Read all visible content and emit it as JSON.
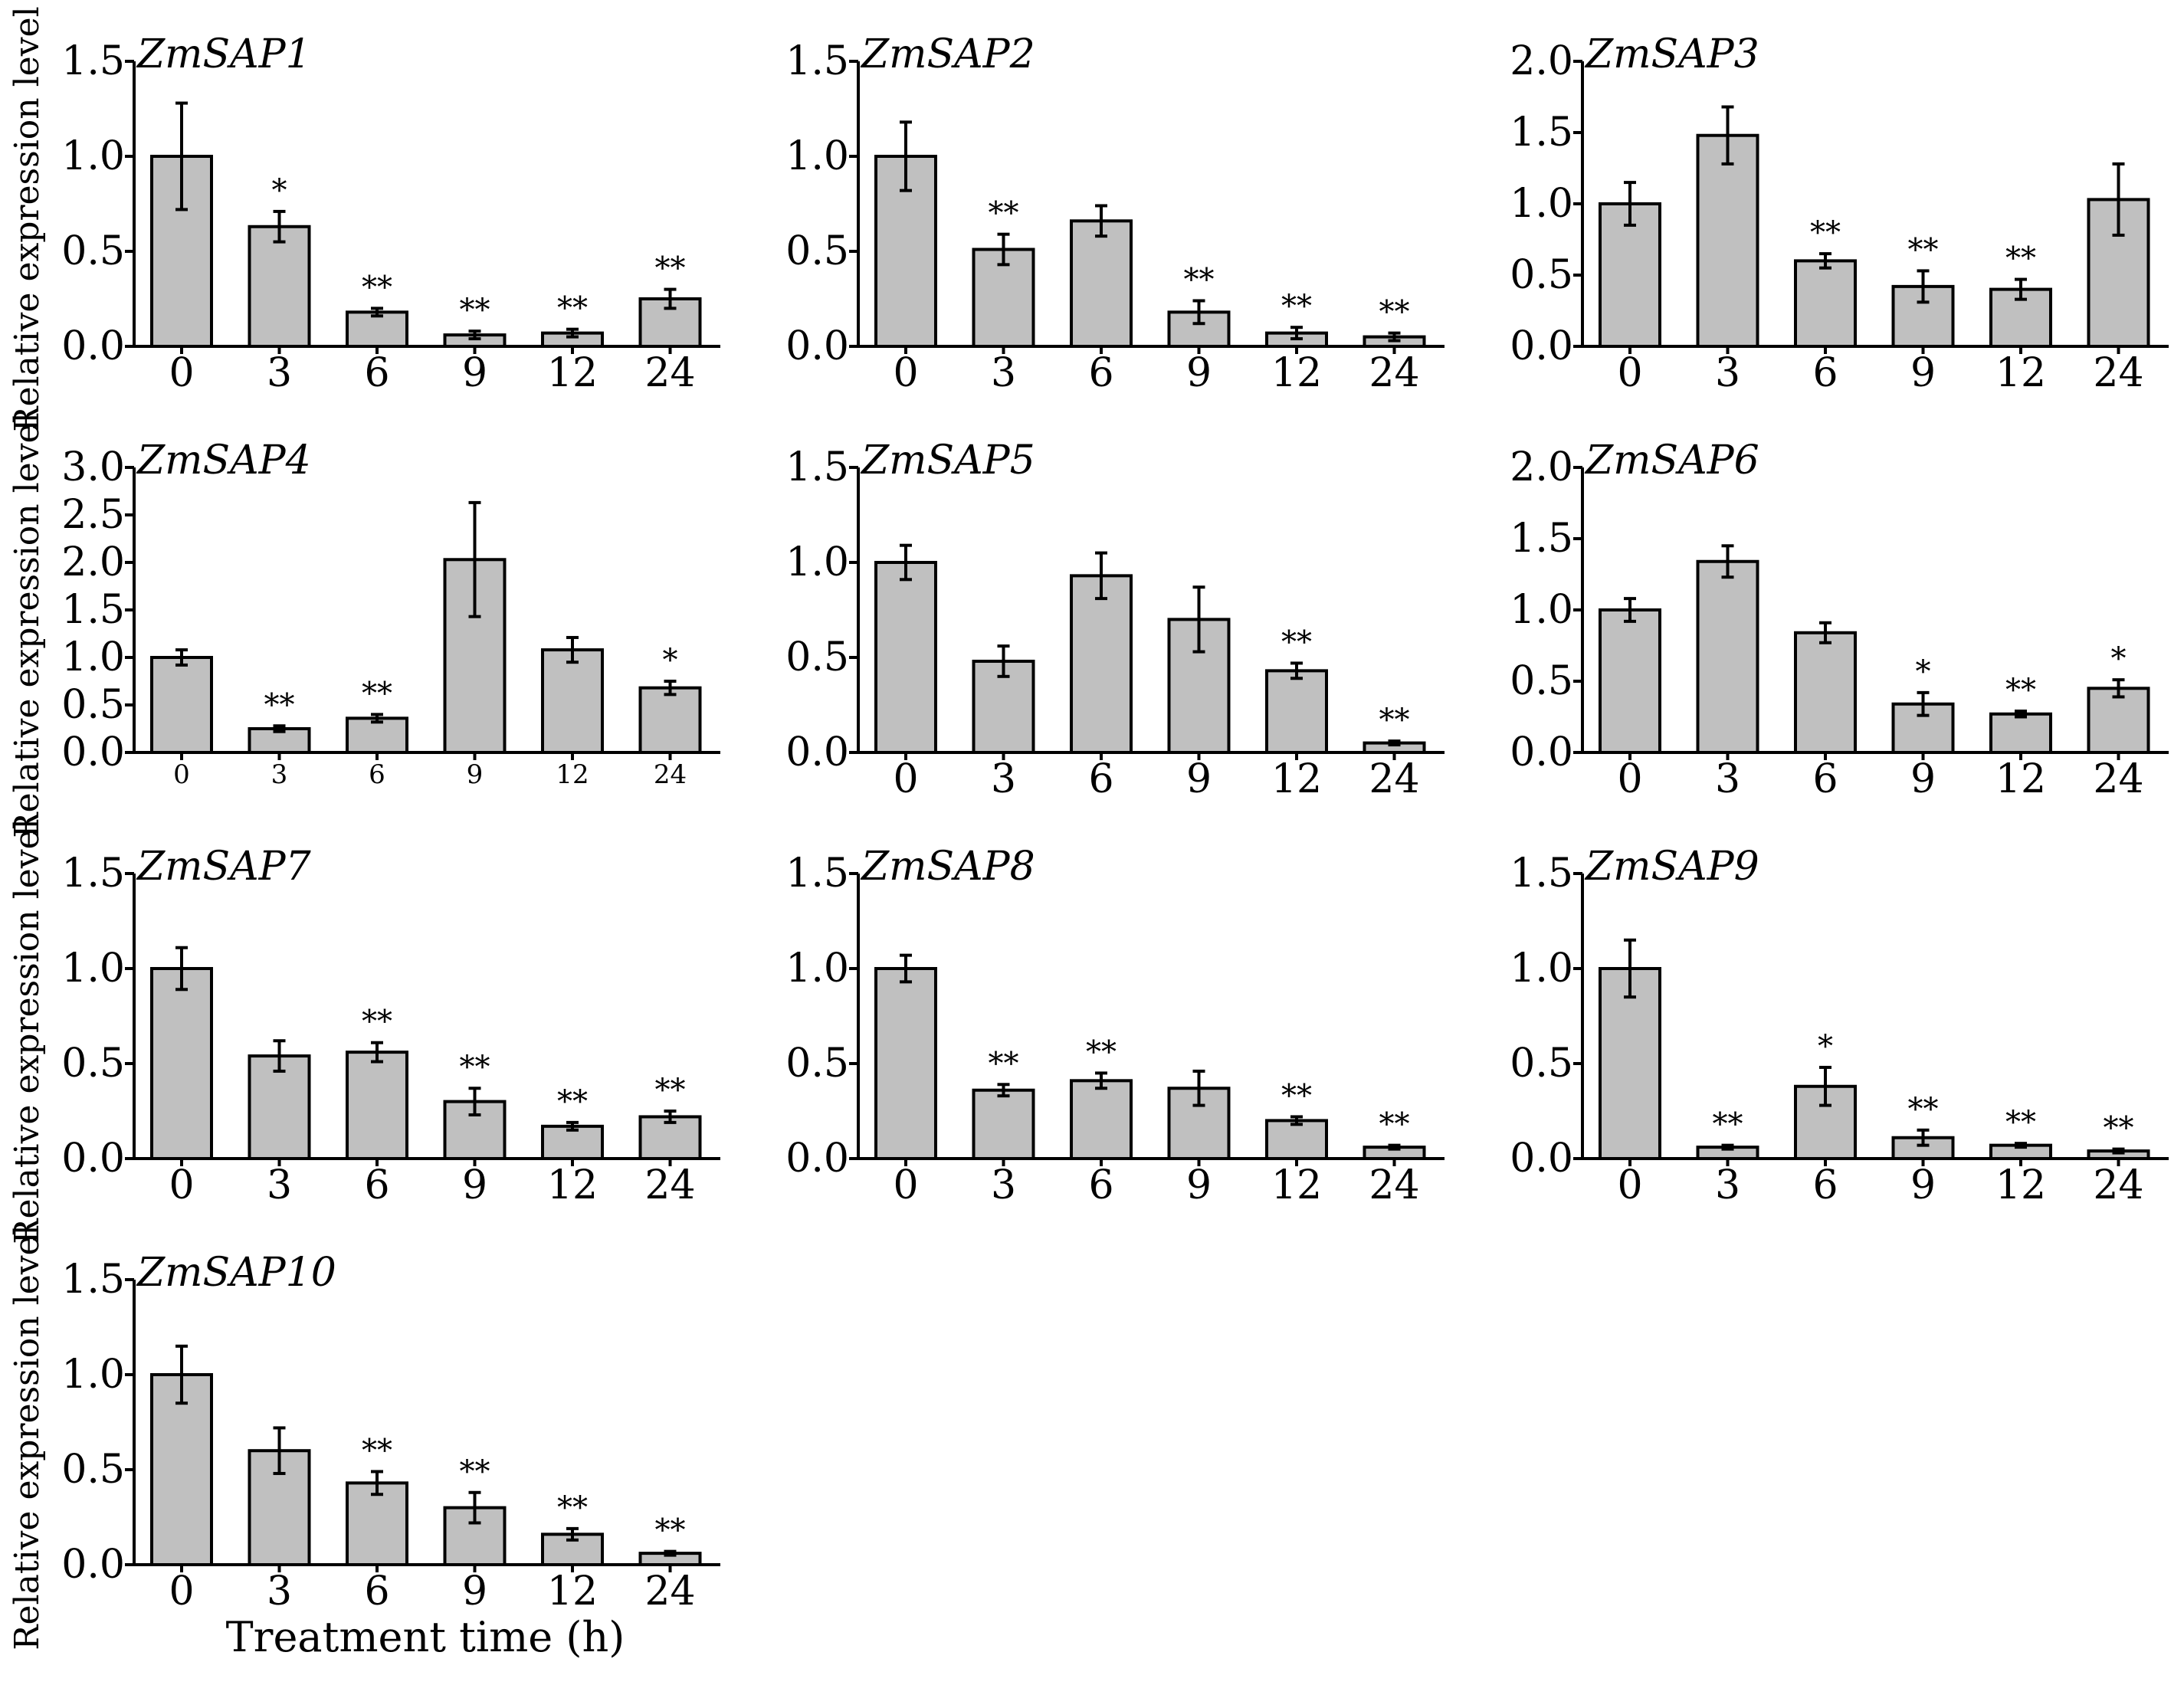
{
  "figure": {
    "ylabel": "Relative expression level",
    "xlabel": "Treatment time (h)"
  },
  "chart_data": [
    {
      "type": "bar",
      "title": "ZmSAP1",
      "categories": [
        "0",
        "3",
        "6",
        "9",
        "12",
        "24"
      ],
      "values": [
        1.0,
        0.63,
        0.18,
        0.06,
        0.07,
        0.25
      ],
      "errors": [
        0.28,
        0.08,
        0.02,
        0.02,
        0.02,
        0.05
      ],
      "significance": [
        "",
        "*",
        "**",
        "**",
        "**",
        "**"
      ],
      "ylim": [
        0,
        1.5
      ],
      "yticks": [
        "0.0",
        "0.5",
        "1.0",
        "1.5"
      ],
      "ystep": 0.5,
      "small_xticks": false
    },
    {
      "type": "bar",
      "title": "ZmSAP2",
      "categories": [
        "0",
        "3",
        "6",
        "9",
        "12",
        "24"
      ],
      "values": [
        1.0,
        0.51,
        0.66,
        0.18,
        0.07,
        0.05
      ],
      "errors": [
        0.18,
        0.08,
        0.08,
        0.06,
        0.03,
        0.02
      ],
      "significance": [
        "",
        "**",
        "",
        "**",
        "**",
        "**"
      ],
      "ylim": [
        0,
        1.5
      ],
      "yticks": [
        "0.0",
        "0.5",
        "1.0",
        "1.5"
      ],
      "ystep": 0.5,
      "small_xticks": false
    },
    {
      "type": "bar",
      "title": "ZmSAP3",
      "categories": [
        "0",
        "3",
        "6",
        "9",
        "12",
        "24"
      ],
      "values": [
        1.0,
        1.48,
        0.6,
        0.42,
        0.4,
        1.03
      ],
      "errors": [
        0.15,
        0.2,
        0.05,
        0.11,
        0.07,
        0.25
      ],
      "significance": [
        "",
        "",
        "**",
        "**",
        "**",
        ""
      ],
      "ylim": [
        0,
        2.0
      ],
      "yticks": [
        "0.0",
        "0.5",
        "1.0",
        "1.5",
        "2.0"
      ],
      "ystep": 0.5,
      "small_xticks": false
    },
    {
      "type": "bar",
      "title": "ZmSAP4",
      "categories": [
        "0",
        "3",
        "6",
        "9",
        "12",
        "24"
      ],
      "values": [
        1.0,
        0.25,
        0.36,
        2.03,
        1.08,
        0.68
      ],
      "errors": [
        0.08,
        0.03,
        0.04,
        0.6,
        0.13,
        0.07
      ],
      "significance": [
        "",
        "**",
        "**",
        "",
        "",
        "*"
      ],
      "ylim": [
        0,
        3.0
      ],
      "yticks": [
        "0.0",
        "0.5",
        "1.0",
        "1.5",
        "2.0",
        "2.5",
        "3.0"
      ],
      "ystep": 0.5,
      "small_xticks": true
    },
    {
      "type": "bar",
      "title": "ZmSAP5",
      "categories": [
        "0",
        "3",
        "6",
        "9",
        "12",
        "24"
      ],
      "values": [
        1.0,
        0.48,
        0.93,
        0.7,
        0.43,
        0.05
      ],
      "errors": [
        0.09,
        0.08,
        0.12,
        0.17,
        0.04,
        0.01
      ],
      "significance": [
        "",
        "",
        "",
        "",
        "**",
        "**"
      ],
      "ylim": [
        0,
        1.5
      ],
      "yticks": [
        "0.0",
        "0.5",
        "1.0",
        "1.5"
      ],
      "ystep": 0.5,
      "small_xticks": false
    },
    {
      "type": "bar",
      "title": "ZmSAP6",
      "categories": [
        "0",
        "3",
        "6",
        "9",
        "12",
        "24"
      ],
      "values": [
        1.0,
        1.34,
        0.84,
        0.34,
        0.27,
        0.45
      ],
      "errors": [
        0.08,
        0.11,
        0.07,
        0.08,
        0.02,
        0.06
      ],
      "significance": [
        "",
        "",
        "",
        "*",
        "**",
        "*"
      ],
      "ylim": [
        0,
        2.0
      ],
      "yticks": [
        "0.0",
        "0.5",
        "1.0",
        "1.5",
        "2.0"
      ],
      "ystep": 0.5,
      "small_xticks": false
    },
    {
      "type": "bar",
      "title": "ZmSAP7",
      "categories": [
        "0",
        "3",
        "6",
        "9",
        "12",
        "24"
      ],
      "values": [
        1.0,
        0.54,
        0.56,
        0.3,
        0.17,
        0.22
      ],
      "errors": [
        0.11,
        0.08,
        0.05,
        0.07,
        0.02,
        0.03
      ],
      "significance": [
        "",
        "",
        "**",
        "**",
        "**",
        "**"
      ],
      "ylim": [
        0,
        1.5
      ],
      "yticks": [
        "0.0",
        "0.5",
        "1.0",
        "1.5"
      ],
      "ystep": 0.5,
      "small_xticks": false
    },
    {
      "type": "bar",
      "title": "ZmSAP8",
      "categories": [
        "0",
        "3",
        "6",
        "9",
        "12",
        "24"
      ],
      "values": [
        1.0,
        0.36,
        0.41,
        0.37,
        0.2,
        0.06
      ],
      "errors": [
        0.07,
        0.03,
        0.04,
        0.09,
        0.02,
        0.01
      ],
      "significance": [
        "",
        "**",
        "**",
        "",
        "**",
        "**"
      ],
      "ylim": [
        0,
        1.5
      ],
      "yticks": [
        "0.0",
        "0.5",
        "1.0",
        "1.5"
      ],
      "ystep": 0.5,
      "small_xticks": false
    },
    {
      "type": "bar",
      "title": "ZmSAP9",
      "categories": [
        "0",
        "3",
        "6",
        "9",
        "12",
        "24"
      ],
      "values": [
        1.0,
        0.06,
        0.38,
        0.11,
        0.07,
        0.04
      ],
      "errors": [
        0.15,
        0.01,
        0.1,
        0.04,
        0.01,
        0.01
      ],
      "significance": [
        "",
        "**",
        "*",
        "**",
        "**",
        "**"
      ],
      "ylim": [
        0,
        1.5
      ],
      "yticks": [
        "0.0",
        "0.5",
        "1.0",
        "1.5"
      ],
      "ystep": 0.5,
      "small_xticks": false
    },
    {
      "type": "bar",
      "title": "ZmSAP10",
      "categories": [
        "0",
        "3",
        "6",
        "9",
        "12",
        "24"
      ],
      "values": [
        1.0,
        0.6,
        0.43,
        0.3,
        0.16,
        0.06
      ],
      "errors": [
        0.15,
        0.12,
        0.06,
        0.08,
        0.03,
        0.01
      ],
      "significance": [
        "",
        "",
        "**",
        "**",
        "**",
        "**"
      ],
      "ylim": [
        0,
        1.5
      ],
      "yticks": [
        "0.0",
        "0.5",
        "1.0",
        "1.5"
      ],
      "ystep": 0.5,
      "small_xticks": false
    }
  ]
}
